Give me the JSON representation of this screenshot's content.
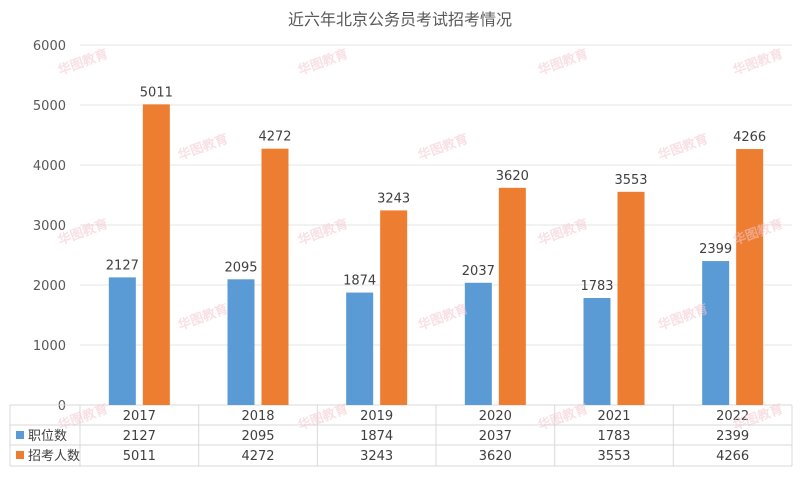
{
  "chart_data": {
    "type": "bar",
    "title": "近六年北京公务员考试招考情况",
    "categories": [
      "2017",
      "2018",
      "2019",
      "2020",
      "2021",
      "2022"
    ],
    "series": [
      {
        "name": "职位数",
        "values": [
          2127,
          2095,
          1874,
          2037,
          1783,
          2399
        ],
        "color": "#5b9bd5"
      },
      {
        "name": "招考人数",
        "values": [
          5011,
          4272,
          3243,
          3620,
          3553,
          4266
        ],
        "color": "#ed7d31"
      }
    ],
    "ylim": [
      0,
      6000
    ],
    "yticks": [
      0,
      1000,
      2000,
      3000,
      4000,
      5000,
      6000
    ],
    "grid": true,
    "legend": "data-table",
    "watermark": "华图教育"
  }
}
